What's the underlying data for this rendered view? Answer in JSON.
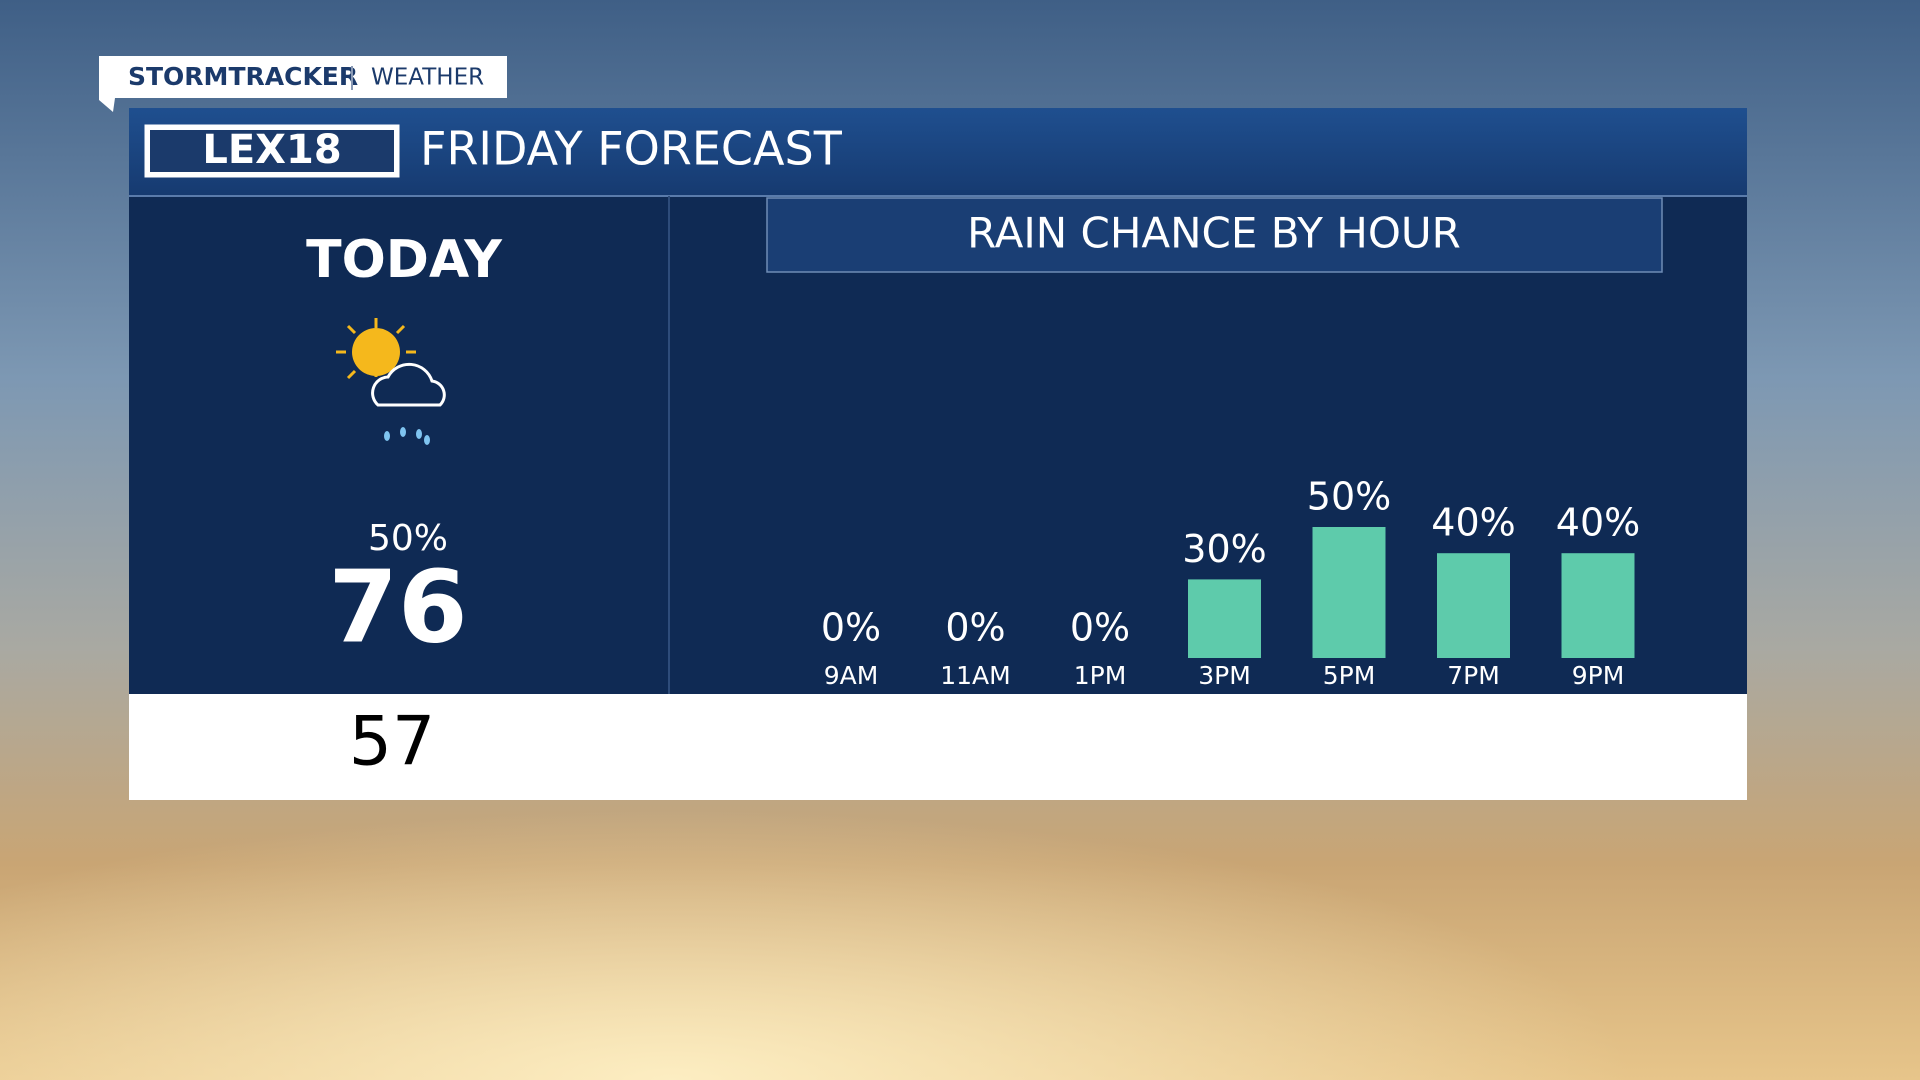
{
  "brand": {
    "name": "STORMTRACKER",
    "section": "WEATHER"
  },
  "header": {
    "logo": "LEX18",
    "title": "FRIDAY FORECAST"
  },
  "today": {
    "label": "TODAY",
    "precip": "50%",
    "high": "76",
    "low": "57"
  },
  "chart_data": {
    "type": "bar",
    "title": "RAIN CHANCE BY HOUR",
    "categories": [
      "9AM",
      "11AM",
      "1PM",
      "3PM",
      "5PM",
      "7PM",
      "9PM"
    ],
    "values": [
      0,
      0,
      0,
      30,
      50,
      40,
      40
    ],
    "value_labels": [
      "0%",
      "0%",
      "0%",
      "30%",
      "50%",
      "40%",
      "40%"
    ],
    "color": "#5ecbab"
  }
}
